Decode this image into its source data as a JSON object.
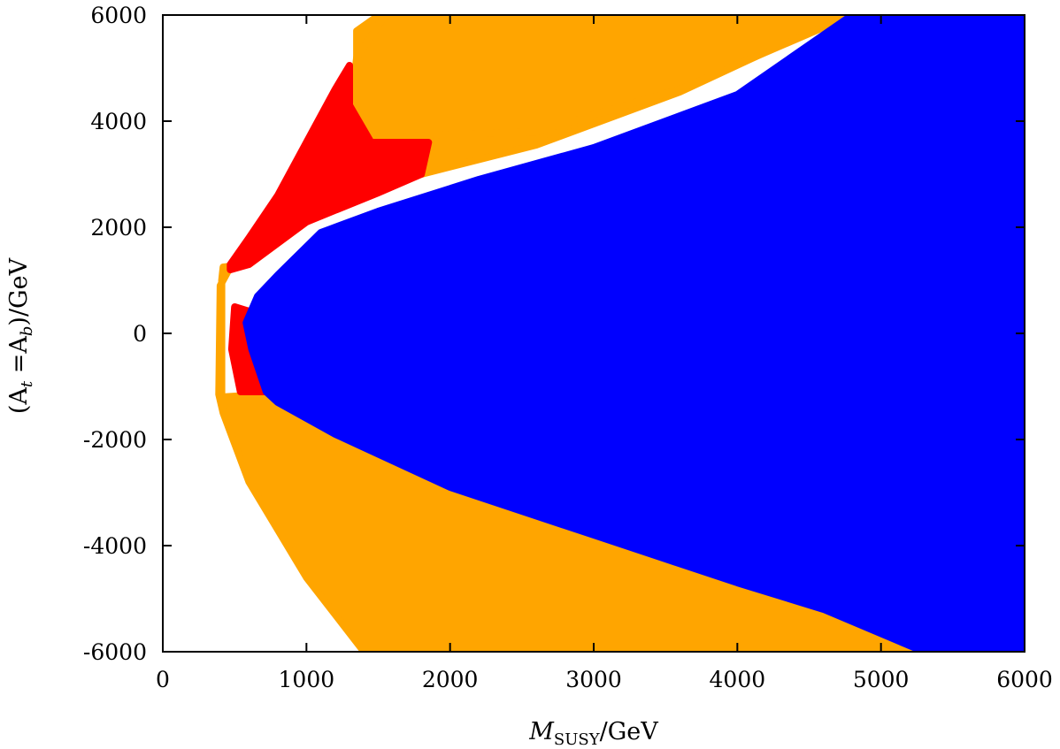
{
  "chart_data": {
    "type": "scatter",
    "title": "",
    "xlabel": {
      "main": "M",
      "sub": "SUSY",
      "rest": "/GeV"
    },
    "ylabel": {
      "open": "(A",
      "sub1": "t",
      "mid": " =A",
      "sub2": "b",
      "close": ")/GeV"
    },
    "xlim": [
      0,
      6000
    ],
    "ylim": [
      -6000,
      6000
    ],
    "x_ticks": [
      0,
      1000,
      2000,
      3000,
      4000,
      5000,
      6000
    ],
    "y_ticks": [
      -6000,
      -4000,
      -2000,
      0,
      2000,
      4000,
      6000
    ],
    "grid": false,
    "legend": "none",
    "colors": {
      "blue": "#0000ff",
      "orange": "#ffa500",
      "red": "#ff0000"
    },
    "regions": [
      {
        "color_key": "orange",
        "polygon": [
          [
            410,
            -1200
          ],
          [
            410,
            1000
          ],
          [
            420,
            1250
          ],
          [
            600,
            1300
          ],
          [
            1000,
            2100
          ],
          [
            1400,
            2600
          ],
          [
            1800,
            3000
          ],
          [
            2600,
            3550
          ],
          [
            3600,
            4550
          ],
          [
            4750,
            6000
          ],
          [
            1550,
            6000
          ],
          [
            1480,
            5950
          ],
          [
            1350,
            5700
          ],
          [
            1350,
            5100
          ],
          [
            1300,
            4300
          ],
          [
            1250,
            3500
          ],
          [
            1000,
            2500
          ],
          [
            750,
            1900
          ],
          [
            600,
            1500
          ],
          [
            460,
            1200
          ],
          [
            400,
            900
          ],
          [
            390,
            -1150
          ],
          [
            420,
            -1500
          ],
          [
            600,
            -2800
          ],
          [
            1000,
            -4600
          ],
          [
            1400,
            -6000
          ],
          [
            5300,
            -6000
          ],
          [
            5000,
            -5700
          ],
          [
            4000,
            -4700
          ],
          [
            3000,
            -3700
          ],
          [
            2000,
            -2700
          ],
          [
            1200,
            -1750
          ],
          [
            700,
            -1150
          ]
        ]
      },
      {
        "color_key": "orange",
        "polygon": [
          [
            1300,
            4000
          ],
          [
            1350,
            5200
          ],
          [
            1550,
            6000
          ],
          [
            4800,
            6000
          ],
          [
            3600,
            4600
          ],
          [
            2600,
            3800
          ],
          [
            1500,
            3700
          ]
        ]
      },
      {
        "color_key": "red",
        "polygon": [
          [
            470,
            1200
          ],
          [
            600,
            1300
          ],
          [
            1000,
            2100
          ],
          [
            1500,
            2650
          ],
          [
            1800,
            3000
          ],
          [
            1850,
            3600
          ],
          [
            1450,
            3600
          ],
          [
            1300,
            4300
          ],
          [
            1300,
            5050
          ],
          [
            1200,
            4600
          ],
          [
            1000,
            3600
          ],
          [
            800,
            2600
          ],
          [
            600,
            1800
          ],
          [
            470,
            1300
          ]
        ]
      },
      {
        "color_key": "red",
        "polygon": [
          [
            480,
            -300
          ],
          [
            500,
            500
          ],
          [
            620,
            400
          ],
          [
            720,
            -1100
          ],
          [
            540,
            -1100
          ]
        ]
      },
      {
        "color_key": "blue",
        "polygon": [
          [
            660,
            700
          ],
          [
            800,
            1100
          ],
          [
            1100,
            1900
          ],
          [
            1500,
            2300
          ],
          [
            2200,
            2900
          ],
          [
            3000,
            3500
          ],
          [
            4000,
            4500
          ],
          [
            4800,
            6000
          ],
          [
            6000,
            6000
          ],
          [
            6000,
            -6000
          ],
          [
            5950,
            -6000
          ],
          [
            5300,
            -6000
          ],
          [
            4600,
            -5200
          ],
          [
            4000,
            -4700
          ],
          [
            3000,
            -3800
          ],
          [
            2000,
            -2900
          ],
          [
            1200,
            -1900
          ],
          [
            800,
            -1300
          ],
          [
            720,
            -1100
          ],
          [
            620,
            -300
          ],
          [
            580,
            200
          ]
        ]
      }
    ]
  }
}
